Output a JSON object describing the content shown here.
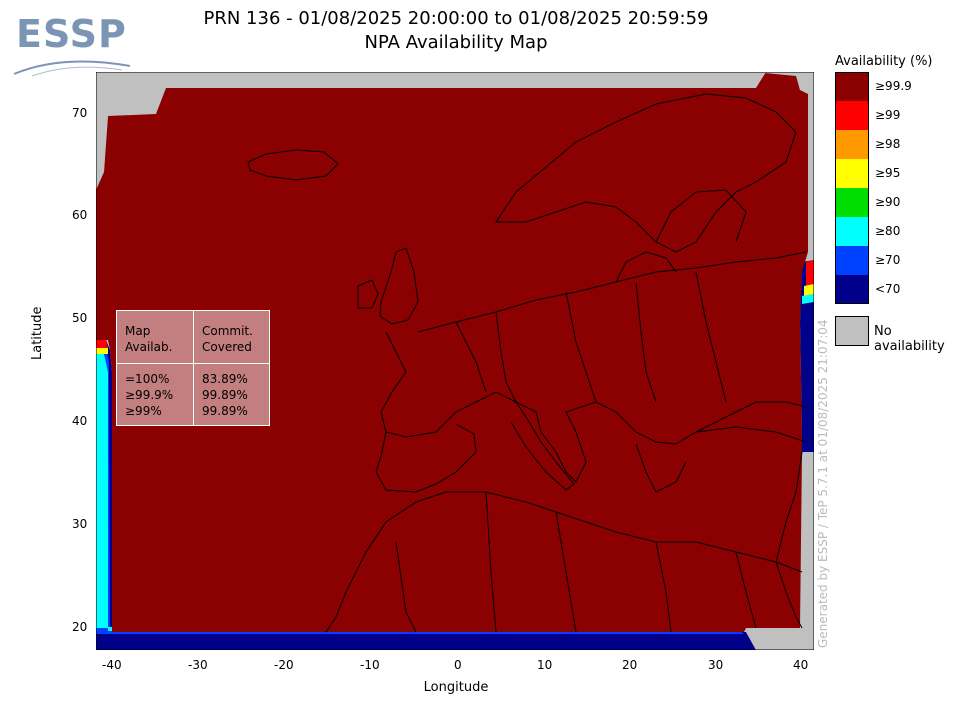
{
  "logo": {
    "text": "ESSP"
  },
  "title": {
    "line1": "PRN 136 - 01/08/2025 20:00:00 to 01/08/2025 20:59:59",
    "line2": "NPA Availability Map"
  },
  "axes": {
    "xlabel": "Longitude",
    "ylabel": "Latitude",
    "x_ticks": [
      "-40",
      "-30",
      "-20",
      "-10",
      "0",
      "10",
      "20",
      "30",
      "40"
    ],
    "y_ticks": [
      "20",
      "30",
      "40",
      "50",
      "60",
      "70"
    ],
    "x_range": [
      -42,
      42
    ],
    "y_range": [
      18,
      74
    ]
  },
  "legend": {
    "title": "Availability (%)",
    "items": [
      {
        "label": "≥99.9",
        "color": "#8b0000"
      },
      {
        "label": "≥99",
        "color": "#ff0000"
      },
      {
        "label": "≥98",
        "color": "#ff9900"
      },
      {
        "label": "≥95",
        "color": "#ffff00"
      },
      {
        "label": "≥90",
        "color": "#00dd00"
      },
      {
        "label": "≥80",
        "color": "#00ffff"
      },
      {
        "label": "≥70",
        "color": "#0040ff"
      },
      {
        "label": "<70",
        "color": "#00008b"
      }
    ],
    "no_availability": {
      "label": "No availability",
      "color": "#c0c0c0"
    }
  },
  "stats_box": {
    "col1_header": "Map\nAvailab.",
    "col2_header": "Commit.\nCovered",
    "col1_rows": "=100%\n≥99.9%\n≥99%",
    "col2_rows": "83.89%\n99.89%\n99.89%"
  },
  "watermark": "Generated by ESSP / TeP 5.7.1 at 01/08/2025 21:07:04",
  "colors": {
    "availability_high": "#8b0000",
    "no_availability": "#c0c0c0",
    "coastline": "#000000",
    "logo": "#7b96b4"
  }
}
